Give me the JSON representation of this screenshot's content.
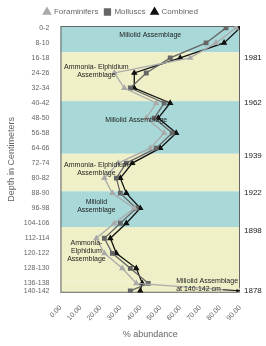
{
  "chart_data": {
    "type": "line",
    "xlabel": "% abundance",
    "ylabel": "Depth in Centimeters",
    "y": [
      1,
      9,
      17,
      25,
      33,
      41,
      49,
      57,
      65,
      73,
      81,
      89,
      97,
      105,
      113,
      121,
      129,
      137,
      141
    ],
    "series": [
      {
        "name": "Foraminifers",
        "color": "#aaaaaa",
        "marker": "triangle",
        "values": [
          88,
          78,
          65,
          27,
          32,
          48,
          43,
          52,
          45,
          29,
          22,
          26,
          37,
          27,
          18,
          22,
          31,
          38,
          90
        ]
      },
      {
        "name": "Molluscs",
        "color": "#666666",
        "marker": "square",
        "values": [
          83,
          73,
          55,
          43,
          35,
          52,
          47,
          56,
          48,
          33,
          28,
          30,
          38,
          30,
          22,
          26,
          35,
          44,
          35
        ]
      },
      {
        "name": "Combined",
        "color": "#111111",
        "marker": "triangle",
        "values": [
          90,
          82,
          60,
          37,
          37,
          55,
          49,
          58,
          50,
          36,
          30,
          33,
          40,
          33,
          25,
          28,
          38,
          41,
          40
        ]
      }
    ],
    "xlim": [
      0,
      90
    ],
    "xticks": [
      {
        "value": 0,
        "label": "0.00"
      },
      {
        "value": 10,
        "label": "10.00"
      },
      {
        "value": 20,
        "label": "20.00"
      },
      {
        "value": 30,
        "label": "30.00"
      },
      {
        "value": 40,
        "label": "40.00"
      },
      {
        "value": 50,
        "label": "50.00"
      },
      {
        "value": 60,
        "label": "60.00"
      },
      {
        "value": 70,
        "label": "70.00"
      },
      {
        "value": 80,
        "label": "80.00"
      },
      {
        "value": 90,
        "label": "90.00"
      }
    ],
    "ylim": [
      142,
      0
    ],
    "yticks": [
      {
        "value": 1,
        "label": "0-2"
      },
      {
        "value": 9,
        "label": "8-10"
      },
      {
        "value": 17,
        "label": "16-18"
      },
      {
        "value": 25,
        "label": "24-26"
      },
      {
        "value": 33,
        "label": "32-34"
      },
      {
        "value": 41,
        "label": "40-42"
      },
      {
        "value": 49,
        "label": "48-50"
      },
      {
        "value": 57,
        "label": "56-58"
      },
      {
        "value": 65,
        "label": "64-66"
      },
      {
        "value": 73,
        "label": "72-74"
      },
      {
        "value": 81,
        "label": "80-82"
      },
      {
        "value": 89,
        "label": "88-90"
      },
      {
        "value": 97,
        "label": "96-98"
      },
      {
        "value": 105,
        "label": "104-106"
      },
      {
        "value": 113,
        "label": "112-114"
      },
      {
        "value": 121,
        "label": "120-122"
      },
      {
        "value": 129,
        "label": "128-130"
      },
      {
        "value": 137,
        "label": "136-138"
      },
      {
        "value": 141,
        "label": "140-142"
      }
    ],
    "grid": false,
    "legend": "top",
    "bands": [
      {
        "y_start": 0,
        "y_end": 14,
        "color": "#a8d8d8",
        "label": "Miliolid Assemblage",
        "label_x": 45,
        "label_y": 5
      },
      {
        "y_start": 14,
        "y_end": 40,
        "color": "#f0f0c8",
        "label": "Ammonia- Elphidium\nAssemblage",
        "label_x": 18,
        "label_y": 24
      },
      {
        "y_start": 40,
        "y_end": 68,
        "color": "#a8d8d8",
        "label": "Miliolid Assemblage",
        "label_x": 38,
        "label_y": 50
      },
      {
        "y_start": 68,
        "y_end": 88,
        "color": "#f0f0c8",
        "label": "Ammonia- Elphidium\nAssemblage",
        "label_x": 18,
        "label_y": 76
      },
      {
        "y_start": 88,
        "y_end": 107,
        "color": "#a8d8d8",
        "label": "Miliolid\nAssemblage",
        "label_x": 18,
        "label_y": 96
      },
      {
        "y_start": 107,
        "y_end": 136,
        "color": "#f0f0c8",
        "label": "Ammonia-\nElphidium\nAssemblage",
        "label_x": 13,
        "label_y": 120
      },
      {
        "y_start": 136,
        "y_end": 142,
        "color": "#f0f0c8"
      }
    ],
    "year_labels": [
      {
        "text": "1981",
        "y": 17
      },
      {
        "text": "1962",
        "y": 41
      },
      {
        "text": "1939",
        "y": 69
      },
      {
        "text": "1922",
        "y": 89
      },
      {
        "text": "1898",
        "y": 109
      },
      {
        "text": "1878",
        "y": 141
      }
    ],
    "annotations": [
      {
        "text": "Miliolid Assemblage\nat 140-142 cm",
        "xy": [
          90,
          141
        ],
        "xytext": [
          58,
          134
        ]
      }
    ]
  }
}
